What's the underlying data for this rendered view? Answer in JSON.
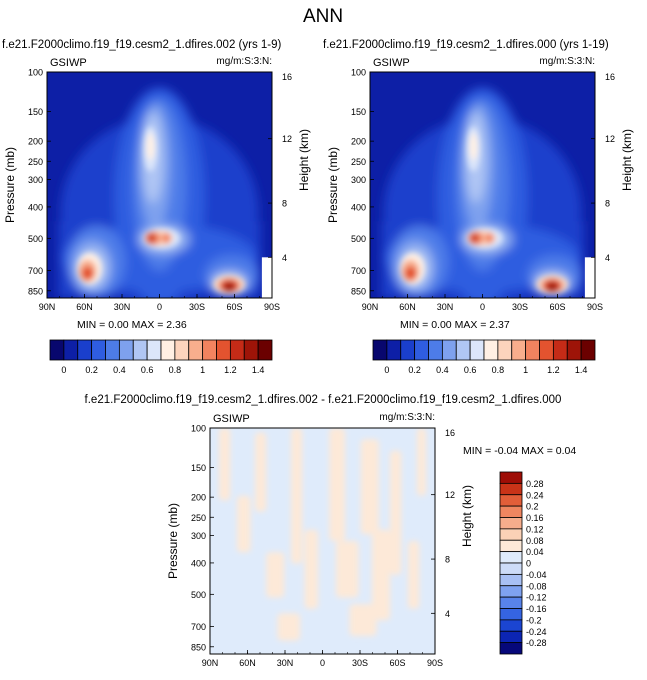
{
  "page_title": "ANN",
  "colors": {
    "main_scale": [
      "#08076e",
      "#0d1fa6",
      "#1a3fcc",
      "#2f5de0",
      "#4d7ce8",
      "#7ea1ee",
      "#b0c6f4",
      "#dce6fa",
      "#fff0e4",
      "#fcd4bd",
      "#f8ae8d",
      "#f2835f",
      "#e3532f",
      "#c52b17",
      "#9e1408",
      "#6b0000"
    ],
    "diff_scale": [
      "#06087a",
      "#0c25b3",
      "#1b45d2",
      "#3564e2",
      "#5883ea",
      "#7fa2f0",
      "#a8c0f4",
      "#cddcf8",
      "#dfebfb",
      "#fde9d8",
      "#fbd1b6",
      "#f6ad8c",
      "#ef8660",
      "#e25e39",
      "#c93318",
      "#9e0d06"
    ]
  },
  "chart_data": [
    {
      "id": "top-left",
      "type": "heatmap",
      "title": "f.e21.F2000climo.f19_f19.cesm2_1.dfires.002 (yrs 1-9)",
      "left_label": "GSIWP",
      "right_label": "mg/m:S:3:N:",
      "ylabel": "Pressure (mb)",
      "ylabel_right": "Height (km)",
      "x_ticks": [
        "90N",
        "60N",
        "30N",
        "0",
        "30S",
        "60S",
        "90S"
      ],
      "y_ticks": [
        "100",
        "150",
        "200",
        "250",
        "300",
        "400",
        "500",
        "700",
        "850"
      ],
      "y_ticks_right": [
        "16",
        "12",
        "8",
        "4"
      ],
      "stats": {
        "min_label": "MIN =",
        "min": "0.00",
        "max_label": "MAX =",
        "max": "2.36"
      },
      "colorbar_labels": [
        "0",
        "0.2",
        "0.4",
        "0.6",
        "0.8",
        "1",
        "1.2",
        "1.4"
      ],
      "xlim": [
        90,
        -90
      ],
      "ylim": [
        1000,
        100
      ],
      "features": [
        {
          "lat": -5,
          "p": 500,
          "value": 2.36
        },
        {
          "lat": 8,
          "p": 500,
          "value": 1.5
        },
        {
          "lat": 2,
          "p": 200,
          "value": 1.0
        },
        {
          "lat": 65,
          "p": 760,
          "value": 1.5
        },
        {
          "lat": -60,
          "p": 850,
          "value": 2.2
        }
      ]
    },
    {
      "id": "top-right",
      "type": "heatmap",
      "title": "f.e21.F2000climo.f19_f19.cesm2_1.dfires.000 (yrs 1-19)",
      "left_label": "GSIWP",
      "right_label": "mg/m:S:3:N:",
      "ylabel": "Pressure (mb)",
      "ylabel_right": "Height (km)",
      "x_ticks": [
        "90N",
        "60N",
        "30N",
        "0",
        "30S",
        "60S",
        "90S"
      ],
      "y_ticks": [
        "100",
        "150",
        "200",
        "250",
        "300",
        "400",
        "500",
        "700",
        "850"
      ],
      "y_ticks_right": [
        "16",
        "12",
        "8",
        "4"
      ],
      "stats": {
        "min_label": "MIN =",
        "min": "0.00",
        "max_label": "MAX =",
        "max": "2.37"
      },
      "colorbar_labels": [
        "0",
        "0.2",
        "0.4",
        "0.6",
        "0.8",
        "1",
        "1.2",
        "1.4"
      ],
      "xlim": [
        90,
        -90
      ],
      "ylim": [
        1000,
        100
      ],
      "features": [
        {
          "lat": -5,
          "p": 500,
          "value": 2.37
        },
        {
          "lat": 8,
          "p": 500,
          "value": 1.5
        },
        {
          "lat": 2,
          "p": 200,
          "value": 1.0
        },
        {
          "lat": 65,
          "p": 760,
          "value": 1.5
        },
        {
          "lat": -60,
          "p": 850,
          "value": 2.2
        }
      ]
    },
    {
      "id": "bottom-diff",
      "type": "heatmap",
      "title": "f.e21.F2000climo.f19_f19.cesm2_1.dfires.002 - f.e21.F2000climo.f19_f19.cesm2_1.dfires.000",
      "left_label": "GSIWP",
      "right_label": "mg/m:S:3:N:",
      "ylabel": "Pressure (mb)",
      "ylabel_right": "Height (km)",
      "x_ticks": [
        "90N",
        "60N",
        "30N",
        "0",
        "30S",
        "60S",
        "90S"
      ],
      "y_ticks": [
        "100",
        "150",
        "200",
        "250",
        "300",
        "400",
        "500",
        "700",
        "850"
      ],
      "y_ticks_right": [
        "16",
        "12",
        "8",
        "4"
      ],
      "stats": {
        "min_label": "MIN =",
        "min": "-0.04",
        "max_label": "MAX =",
        "max": "0.04"
      },
      "colorbar_labels": [
        "0.28",
        "0.24",
        "0.2",
        "0.16",
        "0.12",
        "0.08",
        "0.04",
        "0",
        "-0.04",
        "-0.08",
        "-0.12",
        "-0.16",
        "-0.2",
        "-0.24",
        "-0.28"
      ],
      "xlim": [
        90,
        -90
      ],
      "ylim": [
        1000,
        100
      ]
    }
  ]
}
